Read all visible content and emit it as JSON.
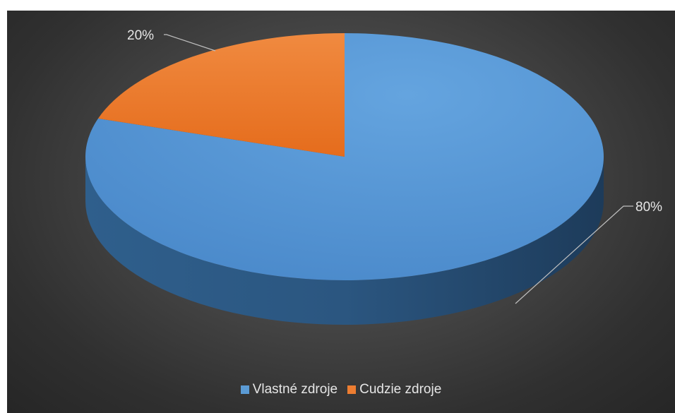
{
  "chart_data": {
    "type": "pie",
    "style": "3d",
    "categories": [
      "Vlastné zdroje",
      "Cudzie zdroje"
    ],
    "values": [
      80,
      20
    ],
    "data_labels": [
      "80%",
      "20%"
    ],
    "colors": [
      "#5b9bd5",
      "#ed7d31"
    ],
    "legend_position": "bottom",
    "title": ""
  }
}
